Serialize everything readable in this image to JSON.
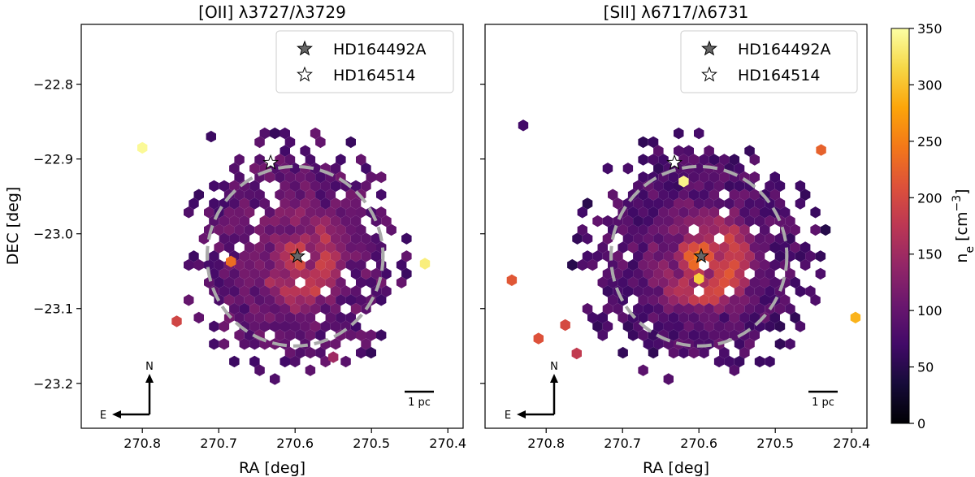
{
  "chart_data": [
    {
      "type": "heatmap",
      "title": "[OII] λ3727/λ3729",
      "xlabel": "RA [deg]",
      "ylabel": "DEC [deg]",
      "xlim": [
        270.88,
        270.38
      ],
      "ylim": [
        -23.26,
        -22.72
      ],
      "xticks": [
        270.8,
        270.7,
        270.6,
        270.5,
        270.4
      ],
      "xtick_labels": [
        "270.8",
        "270.7",
        "270.6",
        "270.5",
        "270.4"
      ],
      "yticks": [
        -22.8,
        -22.9,
        -23.0,
        -23.1,
        -23.2
      ],
      "ytick_labels": [
        "−22.8",
        "−22.9",
        "−23.0",
        "−23.1",
        "−23.2"
      ],
      "circle": {
        "ra": 270.6,
        "dec": -23.03,
        "radius_deg": 0.12
      },
      "stars": [
        {
          "name": "HD164492A",
          "ra": 270.597,
          "dec": -23.03,
          "fill": "#666666"
        },
        {
          "name": "HD164514",
          "ra": 270.632,
          "dec": -22.905,
          "fill": "#ffffff"
        }
      ],
      "legend": [
        "HD164492A",
        "HD164514"
      ],
      "scalebar_label": "1 pc",
      "compass": {
        "north": "N",
        "east": "E"
      },
      "hex_field": {
        "center_ra": 270.6,
        "center_dec": -23.03,
        "ne_peak": 210,
        "ne_edge": 95
      },
      "outliers": [
        {
          "ra": 270.8,
          "dec": -22.885,
          "ne": 345
        },
        {
          "ra": 270.43,
          "dec": -23.04,
          "ne": 335
        },
        {
          "ra": 270.755,
          "dec": -23.117,
          "ne": 195
        },
        {
          "ra": 270.684,
          "dec": -23.037,
          "ne": 235
        },
        {
          "ra": 270.71,
          "dec": -22.87,
          "ne": 65
        },
        {
          "ra": 270.55,
          "dec": -23.165,
          "ne": 150
        }
      ]
    },
    {
      "type": "heatmap",
      "title": "[SII] λ6717/λ6731",
      "xlabel": "RA [deg]",
      "ylabel": "",
      "xlim": [
        270.88,
        270.38
      ],
      "ylim": [
        -23.26,
        -22.72
      ],
      "xticks": [
        270.8,
        270.7,
        270.6,
        270.5,
        270.4
      ],
      "xtick_labels": [
        "270.8",
        "270.7",
        "270.6",
        "270.5",
        "270.4"
      ],
      "yticks": [
        -22.8,
        -22.9,
        -23.0,
        -23.1,
        -23.2
      ],
      "circle": {
        "ra": 270.6,
        "dec": -23.03,
        "radius_deg": 0.12
      },
      "stars": [
        {
          "name": "HD164492A",
          "ra": 270.597,
          "dec": -23.03,
          "fill": "#666666"
        },
        {
          "name": "HD164514",
          "ra": 270.632,
          "dec": -22.905,
          "fill": "#ffffff"
        }
      ],
      "legend": [
        "HD164492A",
        "HD164514"
      ],
      "scalebar_label": "1 pc",
      "compass": {
        "north": "N",
        "east": "E"
      },
      "hex_field": {
        "center_ra": 270.6,
        "center_dec": -23.03,
        "ne_peak": 250,
        "ne_edge": 85
      },
      "outliers": [
        {
          "ra": 270.44,
          "dec": -22.888,
          "ne": 225
        },
        {
          "ra": 270.395,
          "dec": -23.112,
          "ne": 290
        },
        {
          "ra": 270.845,
          "dec": -23.062,
          "ne": 215
        },
        {
          "ra": 270.81,
          "dec": -23.14,
          "ne": 210
        },
        {
          "ra": 270.775,
          "dec": -23.122,
          "ne": 200
        },
        {
          "ra": 270.83,
          "dec": -22.855,
          "ne": 70
        },
        {
          "ra": 270.62,
          "dec": -22.93,
          "ne": 340
        },
        {
          "ra": 270.6,
          "dec": -23.06,
          "ne": 310
        },
        {
          "ra": 270.76,
          "dec": -23.16,
          "ne": 180
        }
      ]
    }
  ],
  "colorbar": {
    "label": "n_e [cm^-3]",
    "label_main": "n",
    "label_sub": "e",
    "label_unit": "[cm",
    "label_sup": "−3",
    "label_close": "]",
    "min": 0,
    "max": 350,
    "ticks": [
      0,
      50,
      100,
      150,
      200,
      250,
      300,
      350
    ],
    "tick_labels": [
      "0",
      "50",
      "100",
      "150",
      "200",
      "250",
      "300",
      "350"
    ],
    "colormap": "inferno"
  }
}
